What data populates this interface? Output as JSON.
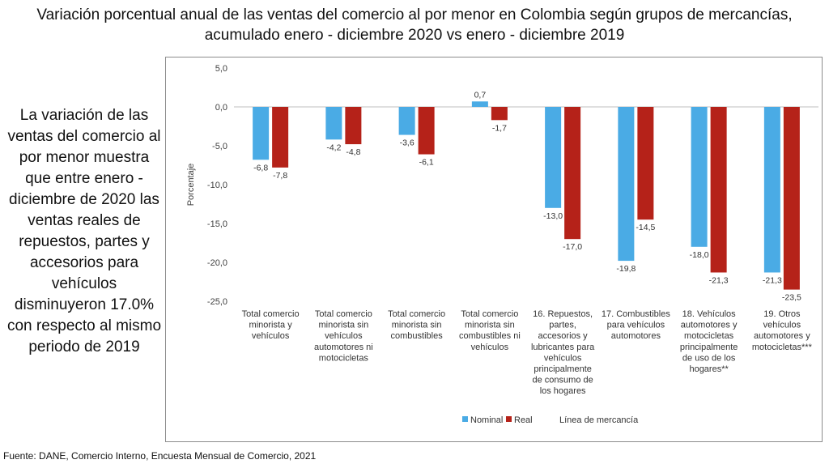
{
  "title": {
    "line1": "Variación porcentual anual de las ventas del comercio al por menor en Colombia según grupos de mercancías,",
    "line2": "acumulado enero - diciembre 2020 vs enero - diciembre 2019"
  },
  "side_text": "La variación de las ventas del comercio al por menor muestra que entre enero - diciembre de 2020 las ventas reales de repuestos, partes y accesorios para vehículos disminuyeron 17.0% con respecto al mismo periodo de 2019",
  "source": "Fuente: DANE, Comercio Interno, Encuesta Mensual de Comercio, 2021",
  "chart_data": {
    "type": "bar",
    "ylabel": "Porcentaje",
    "ylim": [
      -25,
      5
    ],
    "yticks": [
      5,
      0,
      -5,
      -10,
      -15,
      -20,
      -25
    ],
    "ytick_labels": [
      "5,0",
      "0,0",
      "-5,0",
      "-10,0",
      "-15,0",
      "-20,0",
      "-25,0"
    ],
    "grid": false,
    "legend_position": "bottom",
    "legend": [
      "Nominal",
      "Real",
      "Línea de mercancía"
    ],
    "categories": [
      [
        "Total comercio",
        "minorista y",
        "vehículos"
      ],
      [
        "Total comercio",
        "minorista sin",
        "vehículos",
        "automotores ni",
        "motocicletas"
      ],
      [
        "Total comercio",
        "minorista sin",
        "combustibles"
      ],
      [
        "Total comercio",
        "minorista sin",
        "combustibles ni",
        "vehículos"
      ],
      [
        "16. Repuestos,",
        "partes,",
        "accesorios y",
        "lubricantes para",
        "vehículos",
        "principalmente",
        "de consumo de",
        "los hogares"
      ],
      [
        "17. Combustibles",
        "para vehículos",
        "automotores"
      ],
      [
        "18. Vehículos",
        "automotores y",
        "motocicletas",
        "principalmente",
        "de uso de los",
        "hogares**"
      ],
      [
        "19. Otros",
        "vehículos",
        "automotores y",
        "motocicletas***"
      ]
    ],
    "series": [
      {
        "name": "Nominal",
        "color": "#4aabe5",
        "values": [
          -6.8,
          -4.2,
          -3.6,
          0.7,
          -13.0,
          -19.8,
          -18.0,
          -21.3
        ],
        "labels": [
          "-6,8",
          "-4,2",
          "-3,6",
          "0,7",
          "-13,0",
          "-19,8",
          "-18,0",
          "-21,3"
        ]
      },
      {
        "name": "Real",
        "color": "#b52219",
        "values": [
          -7.8,
          -4.8,
          -6.1,
          -1.7,
          -17.0,
          -14.5,
          -21.3,
          -23.5
        ],
        "labels": [
          "-7,8",
          "-4,8",
          "-6,1",
          "-1,7",
          "-17,0",
          "-14,5",
          "-21,3",
          "-23,5"
        ]
      }
    ]
  }
}
